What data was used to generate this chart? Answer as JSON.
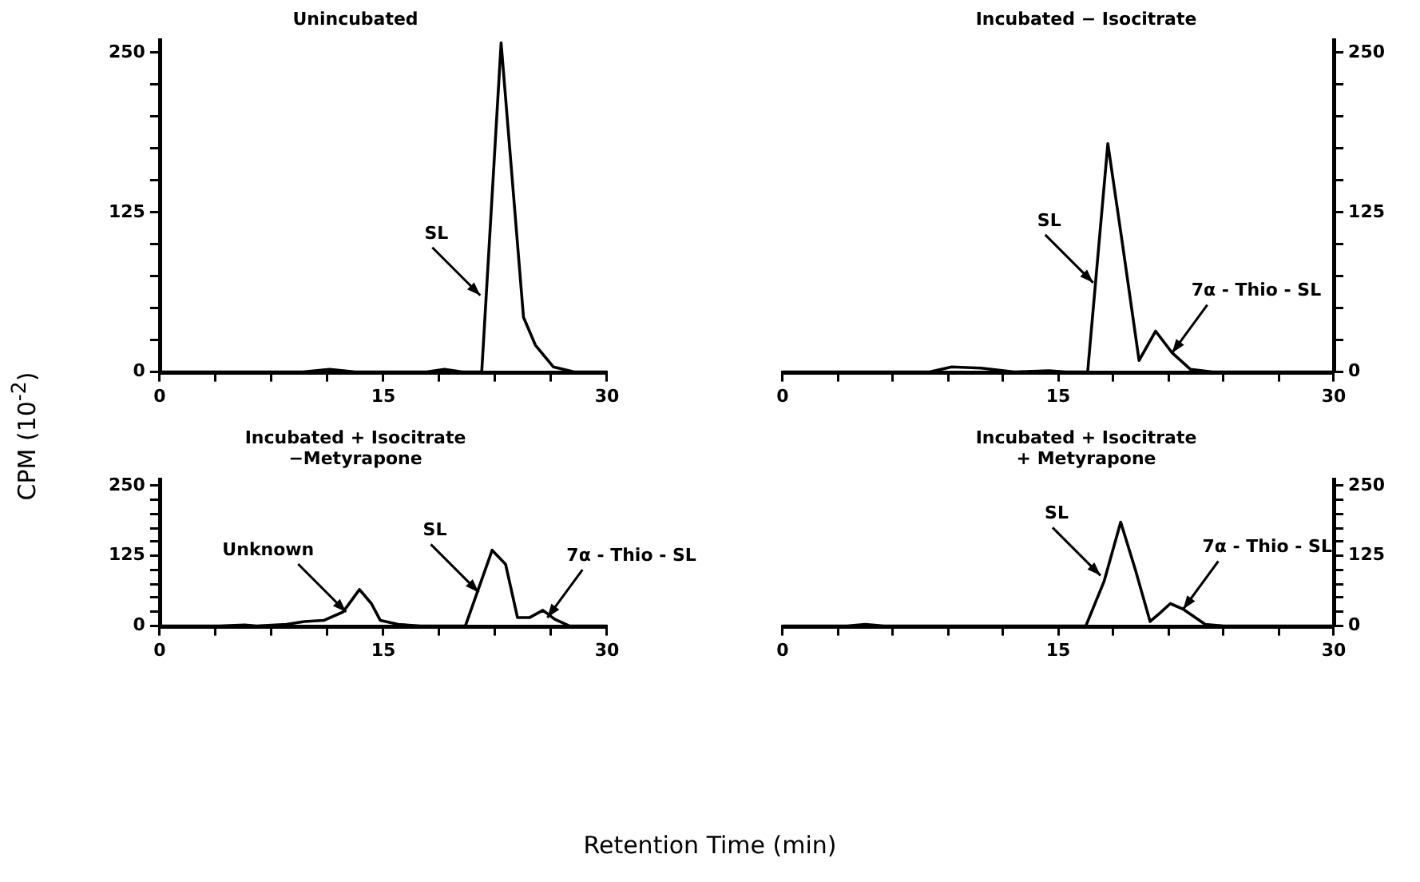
{
  "chart_data": [
    {
      "type": "line",
      "title": "Unincubated",
      "ylabel": "CPM (10$^{-2}$)",
      "marker": "none",
      "grid": false,
      "legend": false,
      "xlim": [
        0,
        30
      ],
      "xticks": [
        0,
        {
          "value": 3.75,
          "label": null
        },
        {
          "value": 7.5,
          "label": null
        },
        {
          "value": 11.25,
          "label": null
        },
        15,
        {
          "value": 18.75,
          "label": null
        },
        {
          "value": 22.5,
          "label": null
        },
        {
          "value": 26.25,
          "label": null
        },
        30
      ],
      "ylim": [
        0,
        260
      ],
      "yticks": [
        0,
        {
          "value": 25,
          "label": null
        },
        {
          "value": 50,
          "label": null
        },
        {
          "value": 75,
          "label": null
        },
        {
          "value": 100,
          "label": null
        },
        125,
        {
          "value": 150,
          "label": null
        },
        {
          "value": 175,
          "label": null
        },
        {
          "value": 200,
          "label": null
        },
        {
          "value": 225,
          "label": null
        },
        250
      ],
      "annotations": [
        {
          "text": "SL",
          "x": 21.5,
          "y": 60
        }
      ],
      "series": [
        {
          "color": "#000000",
          "x": [
            0,
            9.6,
            11.4,
            13.1,
            17.9,
            19.1,
            20.3,
            21.6,
            22.9,
            24.4,
            25.2,
            26.4,
            27.8,
            30
          ],
          "values": [
            0,
            0,
            2,
            0,
            0,
            2,
            0,
            0,
            258,
            43,
            21,
            4,
            0,
            0
          ]
        }
      ]
    },
    {
      "type": "line",
      "title": "Incubated − Isocitrate",
      "marker": "none",
      "grid": false,
      "legend": false,
      "xlim": [
        0,
        30
      ],
      "xticks": [
        0,
        {
          "value": 3,
          "label": null
        },
        {
          "value": 6,
          "label": null
        },
        {
          "value": 9,
          "label": null
        },
        {
          "value": 12,
          "label": null
        },
        15,
        {
          "value": 18,
          "label": null
        },
        {
          "value": 21,
          "label": null
        },
        {
          "value": 24,
          "label": null
        },
        {
          "value": 27,
          "label": null
        },
        30
      ],
      "ylim": [
        0,
        260
      ],
      "yticks": [
        0,
        {
          "value": 25,
          "label": null
        },
        {
          "value": 50,
          "label": null
        },
        {
          "value": 75,
          "label": null
        },
        {
          "value": 100,
          "label": null
        },
        125,
        {
          "value": 150,
          "label": null
        },
        {
          "value": 175,
          "label": null
        },
        {
          "value": 200,
          "label": null
        },
        {
          "value": 225,
          "label": null
        },
        250
      ],
      "annotations": [
        {
          "text": "SL",
          "x": 16.9,
          "y": 70
        },
        {
          "text": "7α - Thio - SL",
          "x": 21.2,
          "y": 15
        }
      ],
      "series": [
        {
          "color": "#000000",
          "x": [
            0,
            8,
            9.2,
            10.8,
            12.6,
            14.5,
            15.4,
            16.6,
            17.7,
            18.5,
            19.4,
            20.3,
            21.2,
            22.2,
            23.4,
            30
          ],
          "values": [
            0,
            0,
            4,
            3,
            0,
            1,
            0,
            0,
            179,
            100,
            9,
            32,
            15,
            2,
            0,
            0
          ]
        }
      ]
    },
    {
      "type": "line",
      "title": "Incubated + Isocitrate\n−Metyrapone",
      "xlabel": "Retention Time (min)",
      "marker": "none",
      "grid": false,
      "legend": false,
      "xlim": [
        0,
        30
      ],
      "xticks": [
        0,
        {
          "value": 3.75,
          "label": null
        },
        {
          "value": 7.5,
          "label": null
        },
        {
          "value": 11.25,
          "label": null
        },
        15,
        {
          "value": 18.75,
          "label": null
        },
        {
          "value": 22.5,
          "label": null
        },
        {
          "value": 26.25,
          "label": null
        },
        30
      ],
      "ylim": [
        0,
        260
      ],
      "yticks": [
        0,
        {
          "value": 25,
          "label": null
        },
        {
          "value": 50,
          "label": null
        },
        {
          "value": 75,
          "label": null
        },
        {
          "value": 100,
          "label": null
        },
        125,
        {
          "value": 150,
          "label": null
        },
        {
          "value": 175,
          "label": null
        },
        {
          "value": 200,
          "label": null
        },
        {
          "value": 225,
          "label": null
        },
        250
      ],
      "annotations": [
        {
          "text": "Unknown",
          "x": 12.5,
          "y": 25
        },
        {
          "text": "SL",
          "x": 21.4,
          "y": 60
        },
        {
          "text": "7α - Thio - SL",
          "x": 26,
          "y": 15
        }
      ],
      "series": [
        {
          "color": "#000000",
          "x": [
            0,
            4,
            5.7,
            6.5,
            8.5,
            9.7,
            11,
            12.3,
            13.4,
            14.2,
            14.8,
            16,
            17.5,
            20.5,
            21.3,
            22.3,
            23.2,
            24,
            24.8,
            25.7,
            26.5,
            27.5,
            30
          ],
          "values": [
            0,
            0,
            2,
            0,
            3,
            8,
            10,
            25,
            65,
            40,
            10,
            3,
            0,
            0,
            60,
            135,
            110,
            15,
            15,
            28,
            12,
            0,
            0
          ]
        }
      ]
    },
    {
      "type": "line",
      "title": "Incubated + Isocitrate\n+ Metyrapone",
      "marker": "none",
      "grid": false,
      "legend": false,
      "xlim": [
        0,
        30
      ],
      "xticks": [
        0,
        {
          "value": 3,
          "label": null
        },
        {
          "value": 6,
          "label": null
        },
        {
          "value": 9,
          "label": null
        },
        {
          "value": 12,
          "label": null
        },
        15,
        {
          "value": 18,
          "label": null
        },
        {
          "value": 21,
          "label": null
        },
        {
          "value": 24,
          "label": null
        },
        {
          "value": 27,
          "label": null
        },
        30
      ],
      "ylim": [
        0,
        260
      ],
      "yticks": [
        0,
        {
          "value": 25,
          "label": null
        },
        {
          "value": 50,
          "label": null
        },
        {
          "value": 75,
          "label": null
        },
        {
          "value": 100,
          "label": null
        },
        125,
        {
          "value": 150,
          "label": null
        },
        {
          "value": 175,
          "label": null
        },
        {
          "value": 200,
          "label": null
        },
        {
          "value": 225,
          "label": null
        },
        250
      ],
      "annotations": [
        {
          "text": "SL",
          "x": 17.3,
          "y": 90
        },
        {
          "text": "7α - Thio - SL",
          "x": 21.8,
          "y": 30
        }
      ],
      "series": [
        {
          "color": "#000000",
          "x": [
            0,
            3.5,
            4.5,
            5.5,
            16.5,
            17.5,
            18.4,
            19.2,
            20,
            20.6,
            21.1,
            21.8,
            23,
            24,
            30
          ],
          "values": [
            0,
            0,
            3,
            0,
            0,
            80,
            185,
            100,
            8,
            25,
            40,
            30,
            3,
            0,
            0
          ]
        }
      ]
    }
  ]
}
